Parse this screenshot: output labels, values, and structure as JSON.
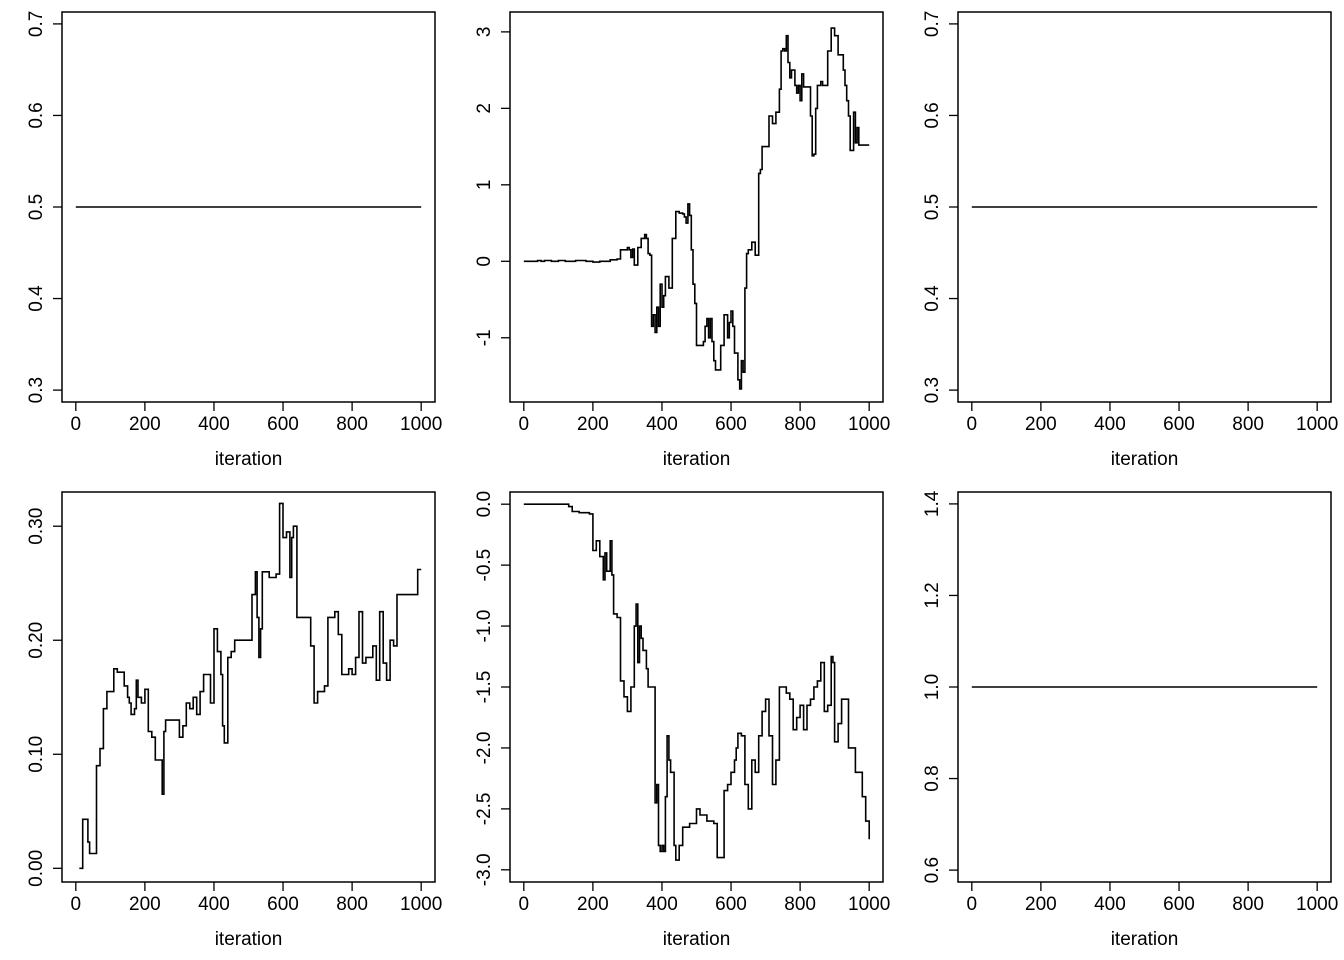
{
  "chart_data": [
    {
      "type": "line",
      "xlabel": "iteration",
      "ylabel": "",
      "xlim": [
        -40,
        1040
      ],
      "ylim": [
        0.287,
        0.713
      ],
      "xticks": [
        0,
        200,
        400,
        600,
        800,
        1000
      ],
      "yticks": [
        0.3,
        0.4,
        0.5,
        0.6,
        0.7
      ],
      "x_tick_labels": [
        "0",
        "200",
        "400",
        "600",
        "800",
        "1000"
      ],
      "y_tick_labels": [
        "0.3",
        "0.4",
        "0.5",
        "0.6",
        "0.7"
      ],
      "grid": false,
      "series": [
        {
          "x": [
            0,
            1000
          ],
          "y": [
            0.5,
            0.5
          ]
        }
      ]
    },
    {
      "type": "line",
      "xlabel": "iteration",
      "ylabel": "",
      "xlim": [
        -40,
        1040
      ],
      "ylim": [
        -1.84,
        3.26
      ],
      "xticks": [
        0,
        200,
        400,
        600,
        800,
        1000
      ],
      "yticks": [
        -1,
        0,
        1,
        2,
        3
      ],
      "x_tick_labels": [
        "0",
        "200",
        "400",
        "600",
        "800",
        "1000"
      ],
      "y_tick_labels": [
        "-1",
        "0",
        "1",
        "2",
        "3"
      ],
      "grid": false,
      "series": [
        {
          "x": [
            0,
            30,
            40,
            50,
            60,
            80,
            100,
            120,
            150,
            180,
            200,
            220,
            250,
            270,
            280,
            300,
            305,
            310,
            315,
            320,
            330,
            340,
            350,
            355,
            360,
            365,
            370,
            375,
            380,
            385,
            390,
            395,
            400,
            405,
            410,
            420,
            430,
            440,
            450,
            460,
            465,
            470,
            475,
            480,
            485,
            490,
            495,
            500,
            510,
            520,
            525,
            530,
            535,
            540,
            545,
            550,
            555,
            560,
            565,
            570,
            580,
            590,
            595,
            600,
            605,
            610,
            615,
            620,
            625,
            630,
            635,
            640,
            645,
            650,
            660,
            670,
            680,
            685,
            690,
            700,
            710,
            715,
            720,
            730,
            740,
            745,
            750,
            755,
            760,
            765,
            770,
            775,
            780,
            785,
            790,
            795,
            800,
            805,
            810,
            815,
            820,
            825,
            830,
            835,
            840,
            845,
            850,
            855,
            860,
            865,
            870,
            880,
            890,
            895,
            900,
            910,
            920,
            925,
            930,
            935,
            940,
            945,
            950,
            955,
            960,
            965,
            970,
            975,
            980,
            985,
            990,
            995,
            1000
          ],
          "y": [
            0.0,
            0.0,
            0.01,
            0.0,
            0.01,
            0.0,
            0.01,
            0.0,
            0.01,
            0.0,
            -0.01,
            0.0,
            0.02,
            0.03,
            0.15,
            0.18,
            0.15,
            0.05,
            0.16,
            -0.05,
            0.18,
            0.3,
            0.35,
            0.3,
            0.1,
            0.08,
            -0.85,
            -0.7,
            -0.93,
            -0.6,
            -0.85,
            -0.3,
            -0.6,
            -0.45,
            -0.2,
            -0.35,
            0.3,
            0.65,
            0.63,
            0.62,
            0.58,
            0.5,
            0.75,
            0.6,
            0.15,
            -0.3,
            -0.55,
            -1.1,
            -1.1,
            -1.05,
            -0.85,
            -0.75,
            -1.0,
            -0.75,
            -1.05,
            -1.3,
            -1.42,
            -1.42,
            -1.42,
            -1.1,
            -0.7,
            -1.0,
            -0.8,
            -0.65,
            -0.85,
            -1.2,
            -1.2,
            -1.55,
            -1.67,
            -1.3,
            -1.45,
            -0.35,
            0.1,
            0.15,
            0.25,
            0.08,
            1.15,
            1.2,
            1.5,
            1.5,
            1.9,
            1.9,
            1.8,
            1.95,
            2.25,
            2.75,
            2.78,
            2.75,
            2.95,
            2.6,
            2.4,
            2.5,
            2.5,
            2.3,
            2.2,
            2.3,
            2.1,
            2.45,
            2.28,
            2.28,
            2.28,
            2.28,
            1.9,
            1.38,
            1.4,
            2.0,
            2.3,
            2.3,
            2.35,
            2.3,
            2.3,
            2.75,
            3.05,
            3.05,
            2.95,
            2.7,
            2.7,
            2.5,
            2.3,
            2.1,
            1.9,
            1.45,
            1.45,
            1.95,
            1.55,
            1.75,
            1.52,
            1.52,
            1.52,
            1.52,
            1.52,
            1.52,
            1.52
          ]
        }
      ]
    },
    {
      "type": "line",
      "xlabel": "iteration",
      "ylabel": "",
      "xlim": [
        -40,
        1040
      ],
      "ylim": [
        0.287,
        0.713
      ],
      "xticks": [
        0,
        200,
        400,
        600,
        800,
        1000
      ],
      "yticks": [
        0.3,
        0.4,
        0.5,
        0.6,
        0.7
      ],
      "x_tick_labels": [
        "0",
        "200",
        "400",
        "600",
        "800",
        "1000"
      ],
      "y_tick_labels": [
        "0.3",
        "0.4",
        "0.5",
        "0.6",
        "0.7"
      ],
      "grid": false,
      "series": [
        {
          "x": [
            0,
            1000
          ],
          "y": [
            0.5,
            0.5
          ]
        }
      ]
    },
    {
      "type": "line",
      "xlabel": "iteration",
      "ylabel": "",
      "xlim": [
        -40,
        1040
      ],
      "ylim": [
        -0.012,
        0.33
      ],
      "xticks": [
        0,
        200,
        400,
        600,
        800,
        1000
      ],
      "yticks": [
        0.0,
        0.1,
        0.2,
        0.3
      ],
      "x_tick_labels": [
        "0",
        "200",
        "400",
        "600",
        "800",
        "1000"
      ],
      "y_tick_labels": [
        "0.00",
        "0.10",
        "0.20",
        "0.30"
      ],
      "grid": false,
      "series": [
        {
          "x": [
            10,
            15,
            20,
            30,
            35,
            40,
            50,
            60,
            70,
            80,
            90,
            100,
            110,
            120,
            130,
            140,
            150,
            155,
            160,
            170,
            175,
            180,
            190,
            200,
            210,
            220,
            230,
            240,
            250,
            255,
            260,
            280,
            300,
            310,
            320,
            330,
            340,
            350,
            360,
            370,
            380,
            390,
            400,
            410,
            420,
            425,
            430,
            440,
            450,
            460,
            470,
            480,
            490,
            500,
            510,
            520,
            525,
            530,
            535,
            540,
            550,
            560,
            570,
            580,
            590,
            595,
            600,
            610,
            620,
            625,
            630,
            640,
            650,
            660,
            670,
            680,
            690,
            700,
            710,
            720,
            730,
            740,
            750,
            760,
            770,
            780,
            790,
            800,
            810,
            820,
            830,
            840,
            850,
            860,
            870,
            880,
            890,
            900,
            905,
            910,
            920,
            930,
            940,
            950,
            960,
            970,
            980,
            990,
            1000
          ],
          "y": [
            0.0,
            0.0,
            0.043,
            0.043,
            0.023,
            0.013,
            0.013,
            0.09,
            0.105,
            0.14,
            0.155,
            0.155,
            0.175,
            0.172,
            0.172,
            0.16,
            0.15,
            0.145,
            0.135,
            0.14,
            0.165,
            0.15,
            0.145,
            0.157,
            0.12,
            0.115,
            0.095,
            0.095,
            0.065,
            0.12,
            0.13,
            0.13,
            0.115,
            0.125,
            0.145,
            0.14,
            0.15,
            0.135,
            0.155,
            0.17,
            0.17,
            0.145,
            0.21,
            0.19,
            0.17,
            0.125,
            0.11,
            0.185,
            0.19,
            0.2,
            0.2,
            0.2,
            0.2,
            0.2,
            0.24,
            0.26,
            0.22,
            0.185,
            0.21,
            0.26,
            0.26,
            0.255,
            0.255,
            0.258,
            0.32,
            0.32,
            0.29,
            0.295,
            0.255,
            0.29,
            0.3,
            0.22,
            0.22,
            0.22,
            0.22,
            0.195,
            0.145,
            0.155,
            0.155,
            0.16,
            0.22,
            0.22,
            0.225,
            0.205,
            0.17,
            0.17,
            0.175,
            0.17,
            0.185,
            0.225,
            0.18,
            0.185,
            0.185,
            0.195,
            0.165,
            0.225,
            0.18,
            0.165,
            0.165,
            0.2,
            0.195,
            0.24,
            0.24,
            0.24,
            0.24,
            0.24,
            0.24,
            0.262,
            0.262
          ]
        }
      ]
    },
    {
      "type": "line",
      "xlabel": "iteration",
      "ylabel": "",
      "xlim": [
        -40,
        1040
      ],
      "ylim": [
        -3.1,
        0.1
      ],
      "xticks": [
        0,
        200,
        400,
        600,
        800,
        1000
      ],
      "yticks": [
        -3.0,
        -2.5,
        -2.0,
        -1.5,
        -1.0,
        -0.5,
        0.0
      ],
      "x_tick_labels": [
        "0",
        "200",
        "400",
        "600",
        "800",
        "1000"
      ],
      "y_tick_labels": [
        "-3.0",
        "-2.5",
        "-2.0",
        "-1.5",
        "-1.0",
        "-0.5",
        "0.0"
      ],
      "grid": false,
      "series": [
        {
          "x": [
            0,
            100,
            130,
            140,
            160,
            190,
            200,
            210,
            220,
            230,
            235,
            240,
            250,
            255,
            260,
            270,
            280,
            290,
            300,
            310,
            320,
            325,
            330,
            335,
            340,
            345,
            350,
            355,
            360,
            370,
            380,
            385,
            390,
            395,
            400,
            405,
            410,
            415,
            420,
            425,
            430,
            435,
            440,
            450,
            460,
            470,
            480,
            490,
            500,
            510,
            530,
            550,
            560,
            570,
            580,
            590,
            600,
            610,
            615,
            620,
            630,
            640,
            650,
            660,
            670,
            680,
            690,
            700,
            710,
            720,
            730,
            740,
            750,
            760,
            770,
            780,
            790,
            800,
            810,
            820,
            830,
            840,
            850,
            860,
            870,
            880,
            890,
            895,
            900,
            910,
            920,
            930,
            940,
            950,
            960,
            970,
            980,
            990,
            1000
          ],
          "y": [
            0.0,
            0.0,
            -0.02,
            -0.06,
            -0.07,
            -0.08,
            -0.38,
            -0.3,
            -0.43,
            -0.62,
            -0.4,
            -0.55,
            -0.3,
            -0.58,
            -0.9,
            -0.93,
            -1.45,
            -1.58,
            -1.7,
            -1.5,
            -1.0,
            -0.82,
            -1.3,
            -1.0,
            -1.1,
            -1.2,
            -1.2,
            -1.35,
            -1.5,
            -1.5,
            -2.45,
            -2.3,
            -2.8,
            -2.85,
            -2.8,
            -2.85,
            -2.4,
            -1.9,
            -2.1,
            -2.2,
            -2.2,
            -2.8,
            -2.92,
            -2.8,
            -2.65,
            -2.65,
            -2.62,
            -2.62,
            -2.5,
            -2.55,
            -2.6,
            -2.62,
            -2.9,
            -2.9,
            -2.35,
            -2.3,
            -2.2,
            -2.1,
            -2.0,
            -1.88,
            -1.9,
            -2.3,
            -2.5,
            -2.1,
            -2.2,
            -1.9,
            -1.7,
            -1.6,
            -1.9,
            -2.3,
            -2.1,
            -1.5,
            -1.5,
            -1.55,
            -1.6,
            -1.85,
            -1.75,
            -1.65,
            -1.85,
            -1.65,
            -1.6,
            -1.5,
            -1.45,
            -1.3,
            -1.7,
            -1.65,
            -1.25,
            -1.3,
            -1.95,
            -1.8,
            -1.6,
            -1.6,
            -2.0,
            -2.0,
            -2.2,
            -2.2,
            -2.4,
            -2.6,
            -2.75
          ]
        }
      ]
    },
    {
      "type": "line",
      "xlabel": "iteration",
      "ylabel": "",
      "xlim": [
        -40,
        1040
      ],
      "ylim": [
        0.574,
        1.426
      ],
      "xticks": [
        0,
        200,
        400,
        600,
        800,
        1000
      ],
      "yticks": [
        0.6,
        0.8,
        1.0,
        1.2,
        1.4
      ],
      "x_tick_labels": [
        "0",
        "200",
        "400",
        "600",
        "800",
        "1000"
      ],
      "y_tick_labels": [
        "0.6",
        "0.8",
        "1.0",
        "1.2",
        "1.4"
      ],
      "grid": false,
      "series": [
        {
          "x": [
            0,
            1000
          ],
          "y": [
            1.0,
            1.0
          ]
        }
      ]
    }
  ]
}
